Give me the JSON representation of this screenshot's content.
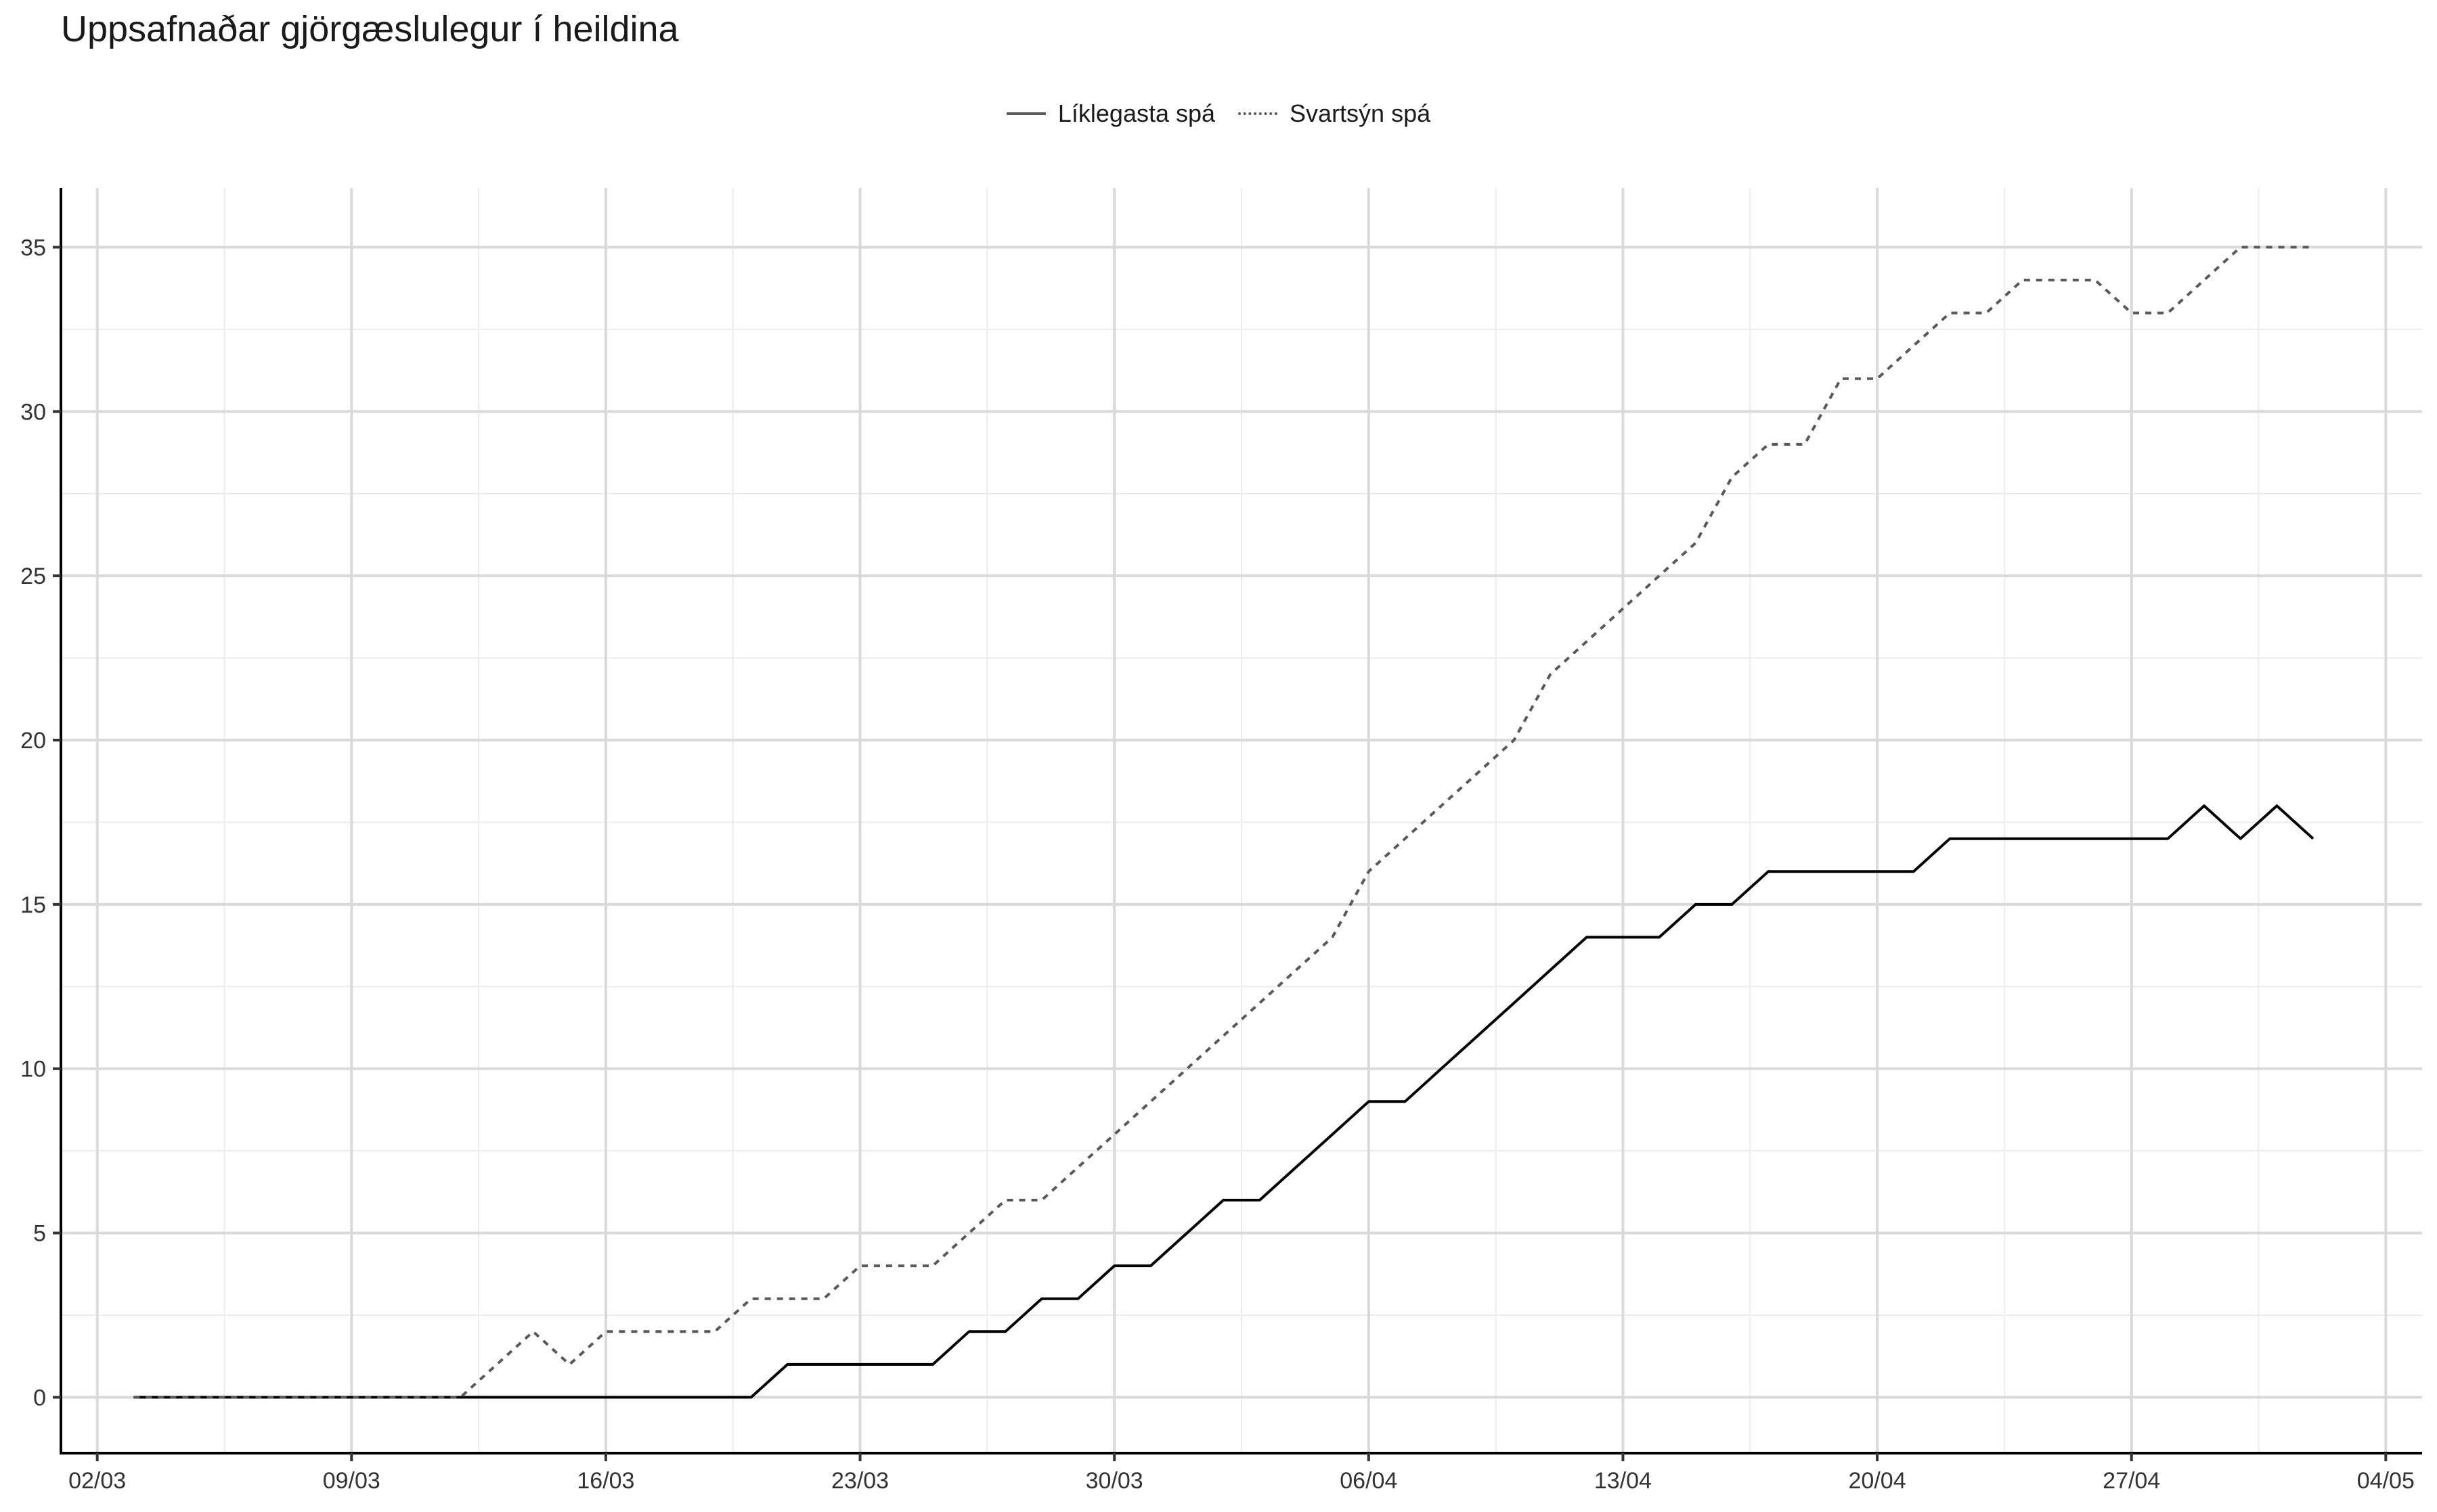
{
  "chart_data": {
    "type": "line",
    "title": "Uppsafnaðar gjörgæslulegur í heildina",
    "xlabel": "",
    "ylabel": "",
    "x_start_date": "2020-03-03",
    "x_tick_labels": [
      "02/03",
      "09/03",
      "16/03",
      "23/03",
      "30/03",
      "06/04",
      "13/04",
      "20/04",
      "27/04",
      "04/05"
    ],
    "y_tick_labels": [
      "0",
      "5",
      "10",
      "15",
      "20",
      "25",
      "30",
      "35"
    ],
    "ylim": [
      -1.7,
      36.8
    ],
    "xlim": [
      "2020-03-01",
      "2020-05-05"
    ],
    "grid": true,
    "legend_position": "top",
    "series": [
      {
        "name": "Líklegasta spá",
        "line_style": "solid",
        "color": "#000000",
        "values": [
          0,
          0,
          0,
          0,
          0,
          0,
          0,
          0,
          0,
          0,
          0,
          0,
          0,
          0,
          0,
          0,
          0,
          0,
          1,
          1,
          1,
          1,
          1,
          2,
          2,
          3,
          3,
          4,
          4,
          5,
          6,
          6,
          7,
          8,
          9,
          9,
          10,
          11,
          12,
          13,
          14,
          14,
          14,
          15,
          15,
          16,
          16,
          16,
          16,
          16,
          17,
          17,
          17,
          17,
          17,
          17,
          17,
          18,
          17,
          18,
          17
        ]
      },
      {
        "name": "Svartsýn spá",
        "line_style": "dotted",
        "color": "#595959",
        "values": [
          0,
          0,
          0,
          0,
          0,
          0,
          0,
          0,
          0,
          0,
          1,
          2,
          1,
          2,
          2,
          2,
          2,
          3,
          3,
          3,
          4,
          4,
          4,
          5,
          6,
          6,
          7,
          8,
          9,
          10,
          11,
          12,
          13,
          14,
          16,
          17,
          18,
          19,
          20,
          22,
          23,
          24,
          25,
          26,
          28,
          29,
          29,
          31,
          31,
          32,
          33,
          33,
          34,
          34,
          34,
          33,
          33,
          34,
          35,
          35,
          35
        ]
      }
    ]
  }
}
